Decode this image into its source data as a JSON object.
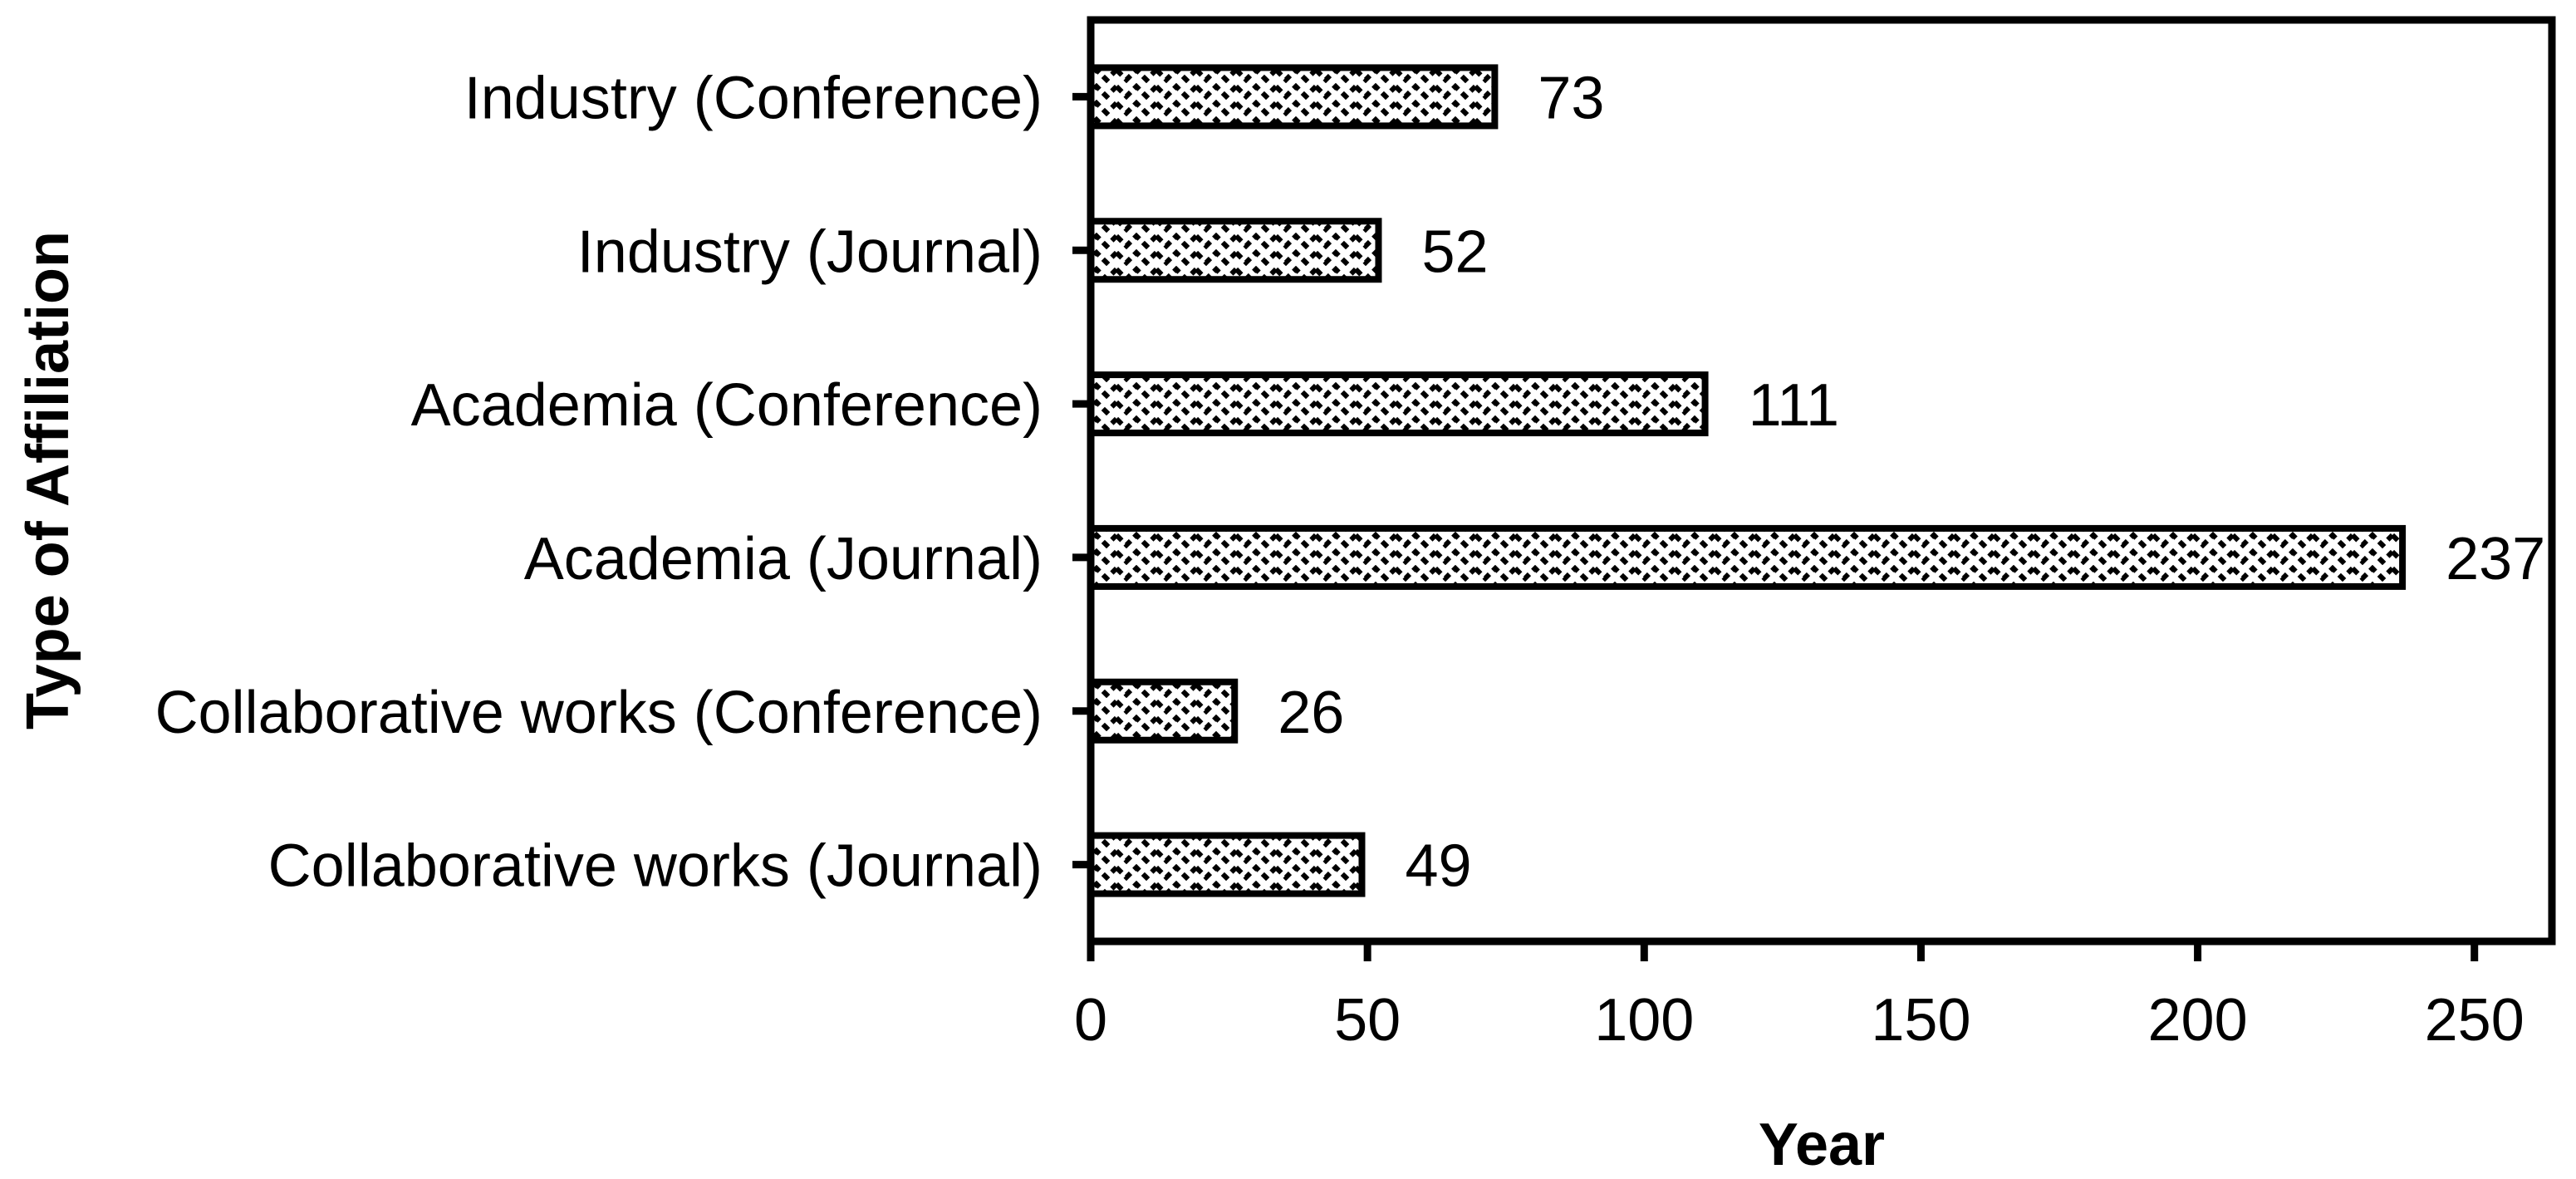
{
  "chart_data": {
    "type": "bar",
    "orientation": "horizontal",
    "title": "",
    "categories": [
      "Industry (Conference)",
      "Industry (Journal)",
      "Academia (Conference)",
      "Academia (Journal)",
      "Collaborative works (Conference)",
      "Collaborative works (Journal)"
    ],
    "values": [
      73,
      52,
      111,
      237,
      26,
      49
    ],
    "value_labels": [
      "73",
      "52",
      "111",
      "237",
      "26",
      "49"
    ],
    "xlabel": "Year",
    "ylabel": "Type of Affiliation",
    "xticks": [
      0,
      50,
      100,
      150,
      200,
      250
    ],
    "xtick_labels": [
      "0",
      "50",
      "100",
      "150",
      "200",
      "250"
    ],
    "xlim": [
      0,
      264
    ],
    "grid": "off",
    "legend": "none",
    "bar_fill": "wave-hatch-pattern",
    "colors": {
      "foreground": "#000000",
      "background": "#ffffff"
    }
  }
}
